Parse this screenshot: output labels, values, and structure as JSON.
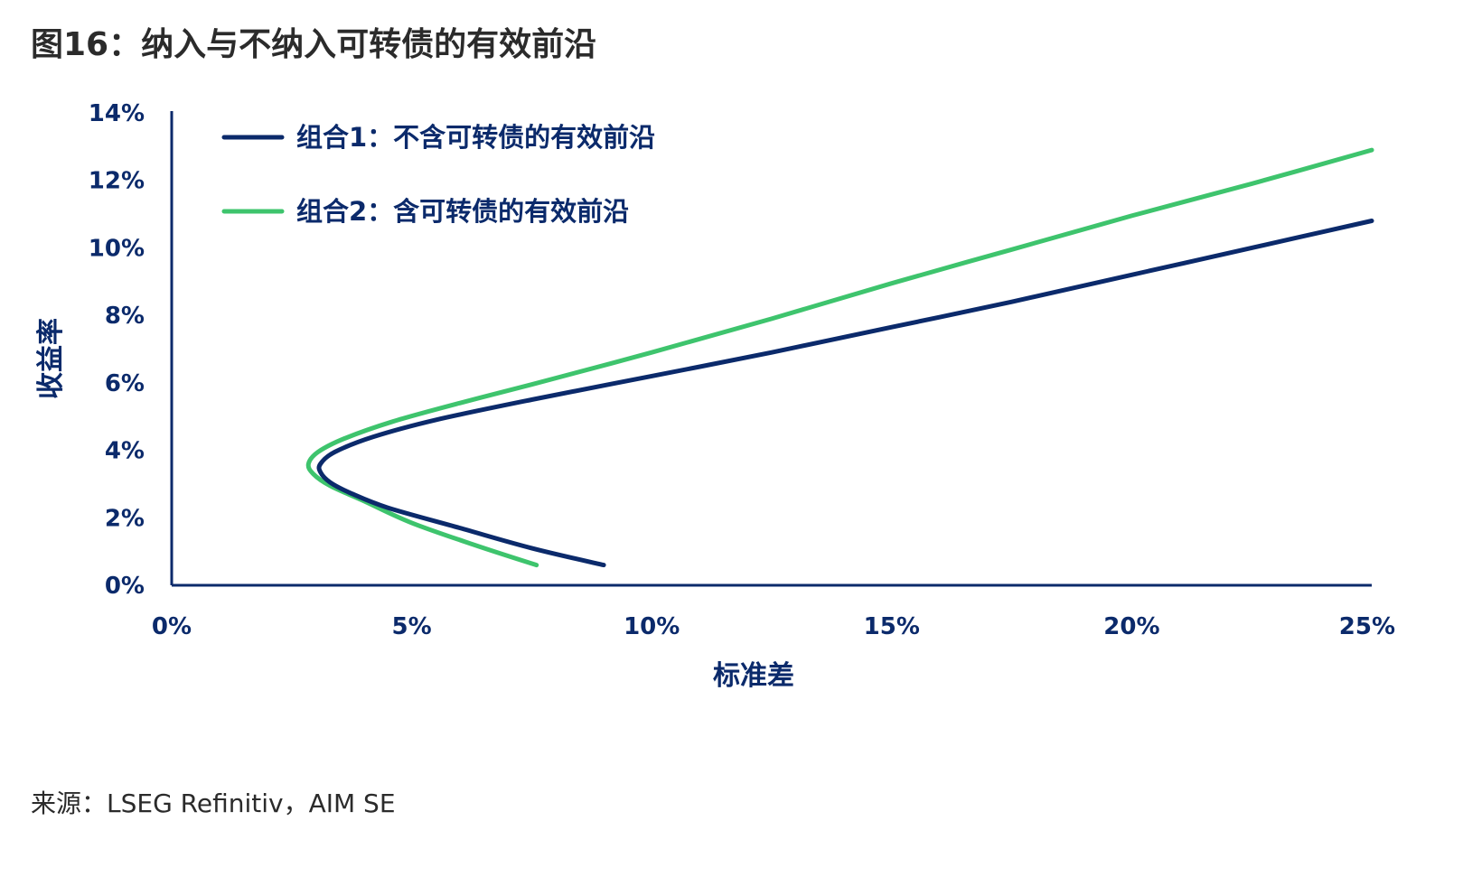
{
  "figure": {
    "title": "图16：纳入与不纳入可转债的有效前沿",
    "source": "来源：LSEG Refinitiv，AIM SE"
  },
  "colors": {
    "axis": "#0b2a6b",
    "series1": "#0b2a6b",
    "series2": "#3ec46d",
    "text": "#2b2b2b"
  },
  "chart_data": {
    "type": "line",
    "title": "图16：纳入与不纳入可转债的有效前沿",
    "xlabel": "标准差",
    "ylabel": "收益率",
    "xlim": [
      0,
      25
    ],
    "ylim": [
      0,
      14
    ],
    "x_ticks": [
      "0%",
      "5%",
      "10%",
      "15%",
      "20%",
      "25%"
    ],
    "y_ticks": [
      "0%",
      "2%",
      "4%",
      "6%",
      "8%",
      "10%",
      "12%",
      "14%"
    ],
    "grid": false,
    "legend_position": "top-left",
    "series": [
      {
        "name": "组合1：不含可转债的有效前沿",
        "color": "#0b2a6b",
        "points": [
          [
            9.0,
            0.6
          ],
          [
            7.5,
            1.1
          ],
          [
            6.0,
            1.7
          ],
          [
            4.5,
            2.3
          ],
          [
            3.7,
            2.75
          ],
          [
            3.3,
            3.05
          ],
          [
            3.1,
            3.35
          ],
          [
            3.1,
            3.6
          ],
          [
            3.4,
            3.95
          ],
          [
            4.2,
            4.4
          ],
          [
            5.5,
            4.9
          ],
          [
            7.5,
            5.5
          ],
          [
            10.0,
            6.2
          ],
          [
            12.5,
            6.9
          ],
          [
            15.0,
            7.65
          ],
          [
            17.5,
            8.4
          ],
          [
            20.0,
            9.2
          ],
          [
            22.5,
            10.0
          ],
          [
            25.0,
            10.8
          ]
        ]
      },
      {
        "name": "组合2：含可转债的有效前沿",
        "color": "#3ec46d",
        "points": [
          [
            7.6,
            0.6
          ],
          [
            6.3,
            1.2
          ],
          [
            5.0,
            1.85
          ],
          [
            4.0,
            2.5
          ],
          [
            3.3,
            2.95
          ],
          [
            2.95,
            3.3
          ],
          [
            2.85,
            3.6
          ],
          [
            3.05,
            3.95
          ],
          [
            3.6,
            4.35
          ],
          [
            4.6,
            4.85
          ],
          [
            6.0,
            5.4
          ],
          [
            7.5,
            5.95
          ],
          [
            10.0,
            6.9
          ],
          [
            12.5,
            7.9
          ],
          [
            15.0,
            8.95
          ],
          [
            17.5,
            9.95
          ],
          [
            20.0,
            10.95
          ],
          [
            22.5,
            11.9
          ],
          [
            25.0,
            12.9
          ]
        ]
      }
    ]
  }
}
